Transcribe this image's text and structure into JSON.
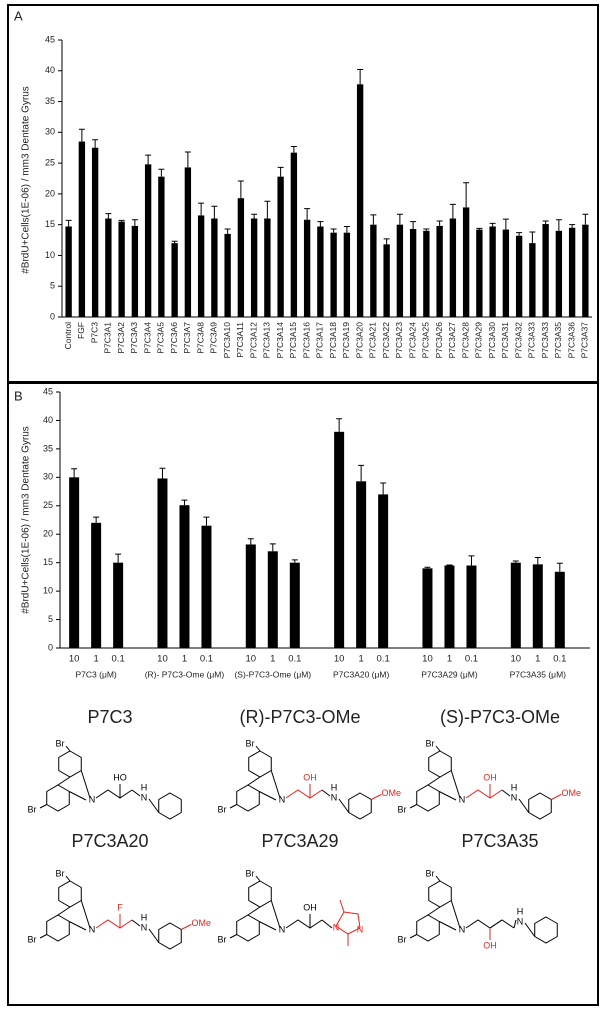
{
  "chart_data": [
    {
      "type": "bar",
      "panel": "A",
      "ylabel": "#BrdU+Cells(1E-06) / mm3 Dentate Gyrus",
      "color": "#000000",
      "categories": [
        "Control",
        "FGF",
        "P7C3",
        "P7C3A1",
        "P7C3A2",
        "P7C3A3",
        "P7C3A4",
        "P7C3A5",
        "P7C3A6",
        "P7C3A7",
        "P7C3A8",
        "P7C3A9",
        "P7C3A10",
        "P7C3A11",
        "P7C3A12",
        "P7C3A13",
        "P7C3A14",
        "P7C3A15",
        "P7C3A16",
        "P7C3A17",
        "P7C3A18",
        "P7C3A19",
        "P7C3A20",
        "P7C3A21",
        "P7C3A22",
        "P7C3A23",
        "P7C3A24",
        "P7C3A25",
        "P7C3A26",
        "P7C3A27",
        "P7C3A28",
        "P7C3A29",
        "P7C3A30",
        "P7C3A31",
        "P7C3A32",
        "P7C3A33",
        "P7C3A33",
        "P7C3A35",
        "P7C3A36",
        "P7C3A37"
      ],
      "values": [
        14.7,
        28.5,
        27.5,
        16,
        15.5,
        14.8,
        24.8,
        22.8,
        12,
        24.3,
        16.5,
        16,
        13.5,
        19.3,
        16,
        16,
        22.8,
        26.7,
        15.8,
        14.7,
        13.7,
        13.7,
        37.8,
        15,
        11.8,
        15,
        14.3,
        14,
        14.8,
        16,
        17.8,
        14.2,
        14.7,
        14.2,
        13.2,
        12,
        15.1,
        14,
        14.5,
        15
      ],
      "errors": [
        1,
        2,
        1.3,
        0.8,
        0.2,
        1,
        1.5,
        1.2,
        0.3,
        2.5,
        2,
        2,
        0.8,
        2.8,
        0.7,
        2.8,
        1.5,
        1,
        1.8,
        0.8,
        0.6,
        1,
        2.4,
        1.6,
        0.9,
        1.7,
        1.2,
        0.3,
        0.8,
        2.3,
        4,
        0.2,
        0.5,
        1.7,
        0.5,
        1.8,
        0.5,
        1.8,
        0.5,
        1.7
      ],
      "ylim": [
        0,
        45
      ],
      "yticks": [
        0,
        5,
        10,
        15,
        20,
        25,
        30,
        35,
        40,
        45
      ]
    },
    {
      "type": "grouped-bar",
      "panel": "B",
      "ylabel": "#BrdU+Cells(1E-06) / mm3 Dentate Gyrus",
      "color": "#000000",
      "groups": [
        "P7C3 (μM)",
        "(R)- P7C3-Ome (μM)",
        "(S)-P7C3-Ome (μM)",
        "P7C3A20 (μM)",
        "P7C3A29 (μM)",
        "P7C3A35 (μM)"
      ],
      "categories": [
        "10",
        "1",
        "0.1",
        "10",
        "1",
        "0.1",
        "10",
        "1",
        "0.1",
        "10",
        "1",
        "0.1",
        "10",
        "1",
        "0.1",
        "10",
        "1",
        "0.1"
      ],
      "values": [
        30,
        22,
        15,
        29.8,
        25.1,
        21.5,
        18.2,
        17,
        15,
        38,
        29.3,
        27,
        14,
        14.5,
        14.5,
        15,
        14.7,
        13.4
      ],
      "errors": [
        1.5,
        1,
        1.5,
        1.8,
        0.9,
        1.5,
        1,
        1.3,
        0.5,
        2.3,
        2.8,
        2,
        0.2,
        0.1,
        1.7,
        0.3,
        1.2,
        1.5
      ],
      "ylim": [
        0,
        45
      ],
      "yticks": [
        0,
        5,
        10,
        15,
        20,
        25,
        30,
        35,
        40,
        45
      ]
    }
  ],
  "structures": [
    {
      "name": "P7C3",
      "atoms": [
        "Br",
        "Br",
        "N",
        "HO",
        "H",
        "N"
      ]
    },
    {
      "name": "(R)-P7C3-OMe",
      "atoms": [
        "Br",
        "Br",
        "N",
        "OH",
        "H",
        "N",
        "OMe"
      ]
    },
    {
      "name": "(S)-P7C3-OMe",
      "atoms": [
        "Br",
        "Br",
        "N",
        "OH",
        "H",
        "N",
        "OMe"
      ]
    },
    {
      "name": "P7C3A20",
      "atoms": [
        "Br",
        "Br",
        "N",
        "F",
        "H",
        "N",
        "OMe"
      ]
    },
    {
      "name": "P7C3A29",
      "atoms": [
        "Br",
        "Br",
        "N",
        "OH",
        "N",
        "N"
      ]
    },
    {
      "name": "P7C3A35",
      "atoms": [
        "Br",
        "Br",
        "N",
        "OH",
        "H",
        "N"
      ]
    }
  ]
}
